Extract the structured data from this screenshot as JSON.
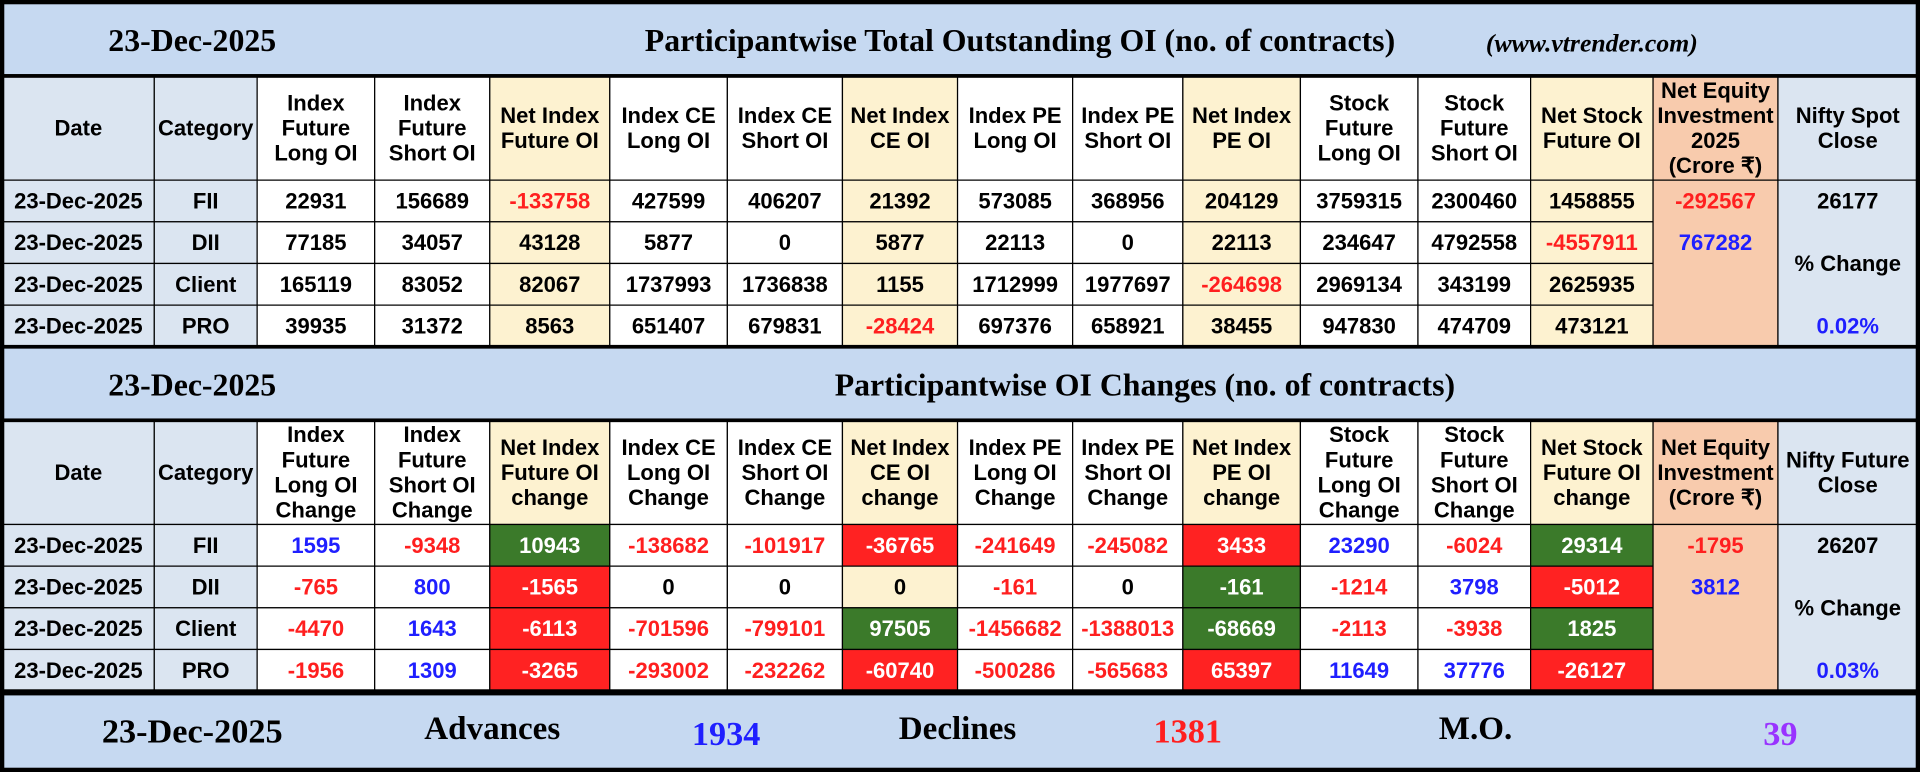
{
  "sections": [
    {
      "header": {
        "date": "23-Dec-2025",
        "title": "Participantwise Total Outstanding OI (no. of contracts)",
        "source": "(www.vtrender.com)"
      },
      "table": {
        "columns": [
          {
            "label": [
              "Date"
            ],
            "fill": "#dbe5f1"
          },
          {
            "label": [
              "Category"
            ],
            "fill": "#dbe5f1"
          },
          {
            "label": [
              "Index",
              "Future",
              "Long OI"
            ],
            "fill": "#ffffff"
          },
          {
            "label": [
              "Index",
              "Future",
              "Short OI"
            ],
            "fill": "#ffffff"
          },
          {
            "label": [
              "Net Index",
              "Future OI"
            ],
            "fill": "#fdf2d0"
          },
          {
            "label": [
              "Index CE",
              "Long OI"
            ],
            "fill": "#ffffff"
          },
          {
            "label": [
              "Index CE",
              "Short OI"
            ],
            "fill": "#ffffff"
          },
          {
            "label": [
              "Net Index",
              "CE OI"
            ],
            "fill": "#fdf2d0"
          },
          {
            "label": [
              "Index PE",
              "Long OI"
            ],
            "fill": "#ffffff"
          },
          {
            "label": [
              "Index PE",
              "Short OI"
            ],
            "fill": "#ffffff"
          },
          {
            "label": [
              "Net Index",
              "PE OI"
            ],
            "fill": "#fdf2d0"
          },
          {
            "label": [
              "Stock",
              "Future",
              "Long OI"
            ],
            "fill": "#ffffff"
          },
          {
            "label": [
              "Stock",
              "Future",
              "Short OI"
            ],
            "fill": "#ffffff"
          },
          {
            "label": [
              "Net Stock",
              "Future OI"
            ],
            "fill": "#fdf2d0"
          },
          {
            "label": [
              "Net Equity",
              "Investment",
              "2025",
              "(Crore ₹)"
            ],
            "fill": "#f8cbad"
          },
          {
            "label": [
              "Nifty Spot",
              "Close"
            ],
            "fill": "#dbe5f1"
          }
        ],
        "rows": [
          {
            "date": "23-Dec-2025",
            "category": "FII",
            "values": [
              22931,
              156689,
              -133758,
              427599,
              406207,
              21392,
              573085,
              368956,
              204129,
              3759315,
              2300460,
              1458855
            ],
            "colors": [
              "#000000",
              "#000000",
              "#ff1f1f",
              "#000000",
              "#000000",
              "#000000",
              "#000000",
              "#000000",
              "#000000",
              "#000000",
              "#000000",
              "#000000"
            ]
          },
          {
            "date": "23-Dec-2025",
            "category": "DII",
            "values": [
              77185,
              34057,
              43128,
              5877,
              0,
              5877,
              22113,
              0,
              22113,
              234647,
              4792558,
              -4557911
            ],
            "colors": [
              "#000000",
              "#000000",
              "#000000",
              "#000000",
              "#000000",
              "#000000",
              "#000000",
              "#000000",
              "#000000",
              "#000000",
              "#000000",
              "#ff1f1f"
            ]
          },
          {
            "date": "23-Dec-2025",
            "category": "Client",
            "values": [
              165119,
              83052,
              82067,
              1737993,
              1736838,
              1155,
              1712999,
              1977697,
              -264698,
              2969134,
              343199,
              2625935
            ],
            "colors": [
              "#000000",
              "#000000",
              "#000000",
              "#000000",
              "#000000",
              "#000000",
              "#000000",
              "#000000",
              "#ff1f1f",
              "#000000",
              "#000000",
              "#000000"
            ]
          },
          {
            "date": "23-Dec-2025",
            "category": "PRO",
            "values": [
              39935,
              31372,
              8563,
              651407,
              679831,
              -28424,
              697376,
              658921,
              38455,
              947830,
              474709,
              473121
            ],
            "colors": [
              "#000000",
              "#000000",
              "#000000",
              "#000000",
              "#000000",
              "#ff1f1f",
              "#000000",
              "#000000",
              "#000000",
              "#000000",
              "#000000",
              "#000000"
            ]
          }
        ],
        "equity": {
          "values": [
            -292567,
            767282
          ],
          "colors": [
            "#ff1f1f",
            "#1f1fff"
          ]
        },
        "nifty": {
          "close": 26177,
          "change_label": "% Change",
          "change": "0.02%",
          "change_color": "#1f1fff"
        }
      }
    },
    {
      "header": {
        "date": "23-Dec-2025",
        "title": "Participantwise OI Changes (no. of contracts)"
      },
      "table": {
        "columns": [
          {
            "label": [
              "Date"
            ],
            "fill": "#dbe5f1"
          },
          {
            "label": [
              "Category"
            ],
            "fill": "#dbe5f1"
          },
          {
            "label": [
              "Index",
              "Future",
              "Long OI",
              "Change"
            ],
            "fill": "#ffffff"
          },
          {
            "label": [
              "Index",
              "Future",
              "Short OI",
              "Change"
            ],
            "fill": "#ffffff"
          },
          {
            "label": [
              "Net Index",
              "Future OI",
              "change"
            ],
            "fill": "#fdf2d0"
          },
          {
            "label": [
              "Index CE",
              "Long OI",
              "Change"
            ],
            "fill": "#ffffff"
          },
          {
            "label": [
              "Index CE",
              "Short OI",
              "Change"
            ],
            "fill": "#ffffff"
          },
          {
            "label": [
              "Net Index",
              "CE OI",
              "change"
            ],
            "fill": "#fdf2d0"
          },
          {
            "label": [
              "Index PE",
              "Long OI",
              "Change"
            ],
            "fill": "#ffffff"
          },
          {
            "label": [
              "Index PE",
              "Short OI",
              "Change"
            ],
            "fill": "#ffffff"
          },
          {
            "label": [
              "Net Index",
              "PE OI",
              "change"
            ],
            "fill": "#fdf2d0"
          },
          {
            "label": [
              "Stock",
              "Future",
              "Long OI",
              "Change"
            ],
            "fill": "#ffffff"
          },
          {
            "label": [
              "Stock",
              "Future",
              "Short OI",
              "Change"
            ],
            "fill": "#ffffff"
          },
          {
            "label": [
              "Net Stock",
              "Future OI",
              "change"
            ],
            "fill": "#fdf2d0"
          },
          {
            "label": [
              "Net Equity",
              "Investment",
              "(Crore ₹)"
            ],
            "fill": "#f8cbad"
          },
          {
            "label": [
              "Nifty Future",
              "Close"
            ],
            "fill": "#dbe5f1"
          }
        ],
        "rows": [
          {
            "date": "23-Dec-2025",
            "category": "FII",
            "values": [
              1595,
              -9348,
              10943,
              -138682,
              -101917,
              -36765,
              -241649,
              -245082,
              3433,
              23290,
              -6024,
              29314
            ],
            "colors": [
              "#1f1fff",
              "#ff1f1f",
              "#ffffff",
              "#ff1f1f",
              "#ff1f1f",
              "#ffffff",
              "#ff1f1f",
              "#ff1f1f",
              "#ffffff",
              "#1f1fff",
              "#ff1f1f",
              "#ffffff"
            ],
            "fills": [
              "#ffffff",
              "#ffffff",
              "#3b7a2a",
              "#ffffff",
              "#ffffff",
              "#ff2222",
              "#ffffff",
              "#ffffff",
              "#ff2222",
              "#ffffff",
              "#ffffff",
              "#3b7a2a"
            ]
          },
          {
            "date": "23-Dec-2025",
            "category": "DII",
            "values": [
              -765,
              800,
              -1565,
              0,
              0,
              0,
              -161,
              0,
              -161,
              -1214,
              3798,
              -5012
            ],
            "colors": [
              "#ff1f1f",
              "#1f1fff",
              "#ffffff",
              "#000000",
              "#000000",
              "#000000",
              "#ff1f1f",
              "#000000",
              "#ffffff",
              "#ff1f1f",
              "#1f1fff",
              "#ffffff"
            ],
            "fills": [
              "#ffffff",
              "#ffffff",
              "#ff2222",
              "#ffffff",
              "#ffffff",
              "#fdf2d0",
              "#ffffff",
              "#ffffff",
              "#3b7a2a",
              "#ffffff",
              "#ffffff",
              "#ff2222"
            ]
          },
          {
            "date": "23-Dec-2025",
            "category": "Client",
            "values": [
              -4470,
              1643,
              -6113,
              -701596,
              -799101,
              97505,
              -1456682,
              -1388013,
              -68669,
              -2113,
              -3938,
              1825
            ],
            "colors": [
              "#ff1f1f",
              "#1f1fff",
              "#ffffff",
              "#ff1f1f",
              "#ff1f1f",
              "#ffffff",
              "#ff1f1f",
              "#ff1f1f",
              "#ffffff",
              "#ff1f1f",
              "#ff1f1f",
              "#ffffff"
            ],
            "fills": [
              "#ffffff",
              "#ffffff",
              "#ff2222",
              "#ffffff",
              "#ffffff",
              "#3b7a2a",
              "#ffffff",
              "#ffffff",
              "#3b7a2a",
              "#ffffff",
              "#ffffff",
              "#3b7a2a"
            ]
          },
          {
            "date": "23-Dec-2025",
            "category": "PRO",
            "values": [
              -1956,
              1309,
              -3265,
              -293002,
              -232262,
              -60740,
              -500286,
              -565683,
              65397,
              11649,
              37776,
              -26127
            ],
            "colors": [
              "#ff1f1f",
              "#1f1fff",
              "#ffffff",
              "#ff1f1f",
              "#ff1f1f",
              "#ffffff",
              "#ff1f1f",
              "#ff1f1f",
              "#ffffff",
              "#1f1fff",
              "#1f1fff",
              "#ffffff"
            ],
            "fills": [
              "#ffffff",
              "#ffffff",
              "#ff2222",
              "#ffffff",
              "#ffffff",
              "#ff2222",
              "#ffffff",
              "#ffffff",
              "#ff2222",
              "#ffffff",
              "#ffffff",
              "#ff2222"
            ]
          }
        ],
        "equity": {
          "values": [
            -1795,
            3812
          ],
          "colors": [
            "#ff1f1f",
            "#1f1fff"
          ]
        },
        "nifty": {
          "close": 26207,
          "change_label": "% Change",
          "change": "0.03%",
          "change_color": "#1f1fff"
        }
      }
    }
  ],
  "footer": {
    "date": "23-Dec-2025",
    "advances_label": "Advances",
    "advances": 1934,
    "advances_color": "#1f1fff",
    "declines_label": "Declines",
    "declines": 1381,
    "declines_color": "#ff1f1f",
    "mo_label": "M.O.",
    "mo": 39,
    "mo_color": "#9933ff"
  }
}
